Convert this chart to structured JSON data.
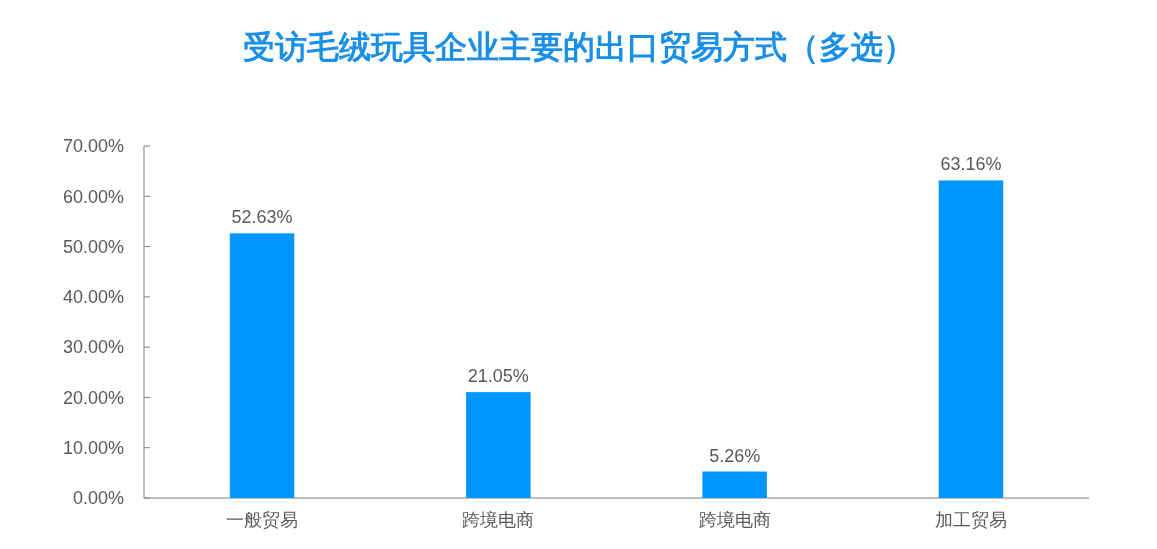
{
  "chart_data": {
    "type": "bar",
    "title": "受访毛绒玩具企业主要的出口贸易方式（多选）",
    "categories": [
      "一般贸易",
      "跨境电商",
      "跨境电商",
      "加工贸易"
    ],
    "values": [
      52.63,
      21.05,
      5.26,
      63.16
    ],
    "value_labels": [
      "52.63%",
      "21.05%",
      "5.26%",
      "63.16%"
    ],
    "color": "#0095ff",
    "ylim": [
      0,
      70
    ],
    "yticks": [
      {
        "value": 0,
        "label": "0.00%"
      },
      {
        "value": 10,
        "label": "10.00%"
      },
      {
        "value": 20,
        "label": "20.00%"
      },
      {
        "value": 30,
        "label": "30.00%"
      },
      {
        "value": 40,
        "label": "40.00%"
      },
      {
        "value": 50,
        "label": "50.00%"
      },
      {
        "value": 60,
        "label": "60.00%"
      },
      {
        "value": 70,
        "label": "70.00%"
      }
    ]
  }
}
